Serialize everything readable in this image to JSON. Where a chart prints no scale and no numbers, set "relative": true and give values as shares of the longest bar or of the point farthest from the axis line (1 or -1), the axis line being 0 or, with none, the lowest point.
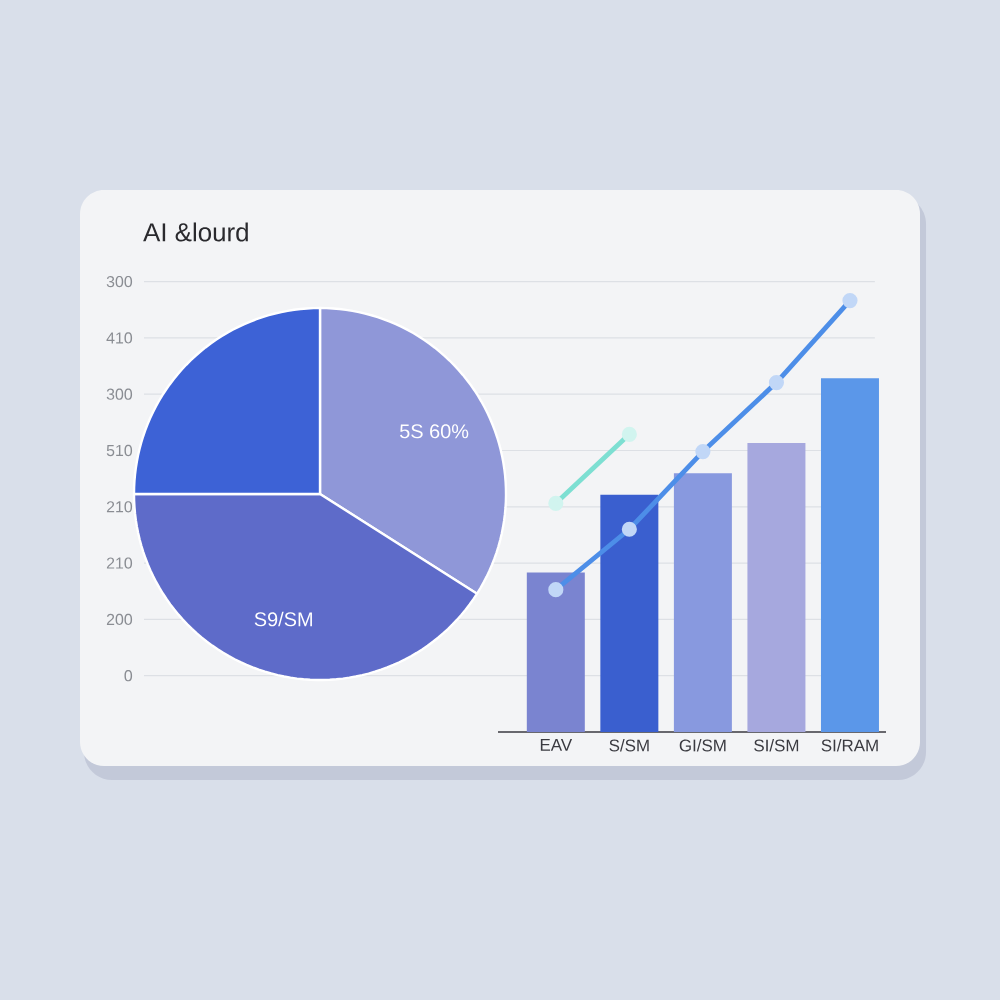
{
  "chart_data": [
    {
      "type": "pie",
      "title": "AI &lourd",
      "categories": [
        "5S 60%",
        "S9/SM",
        null
      ],
      "values": [
        34,
        41,
        25
      ],
      "colors": [
        "#8f97d8",
        "#5e6bc9",
        "#3d62d6"
      ]
    },
    {
      "type": "bar",
      "categories": [
        "EAV",
        "S/SM",
        "GI/SM",
        "SI/SM",
        "SI/RAM"
      ],
      "relative": true,
      "series": [
        {
          "values": [
            0.37,
            0.55,
            0.6,
            0.67,
            0.82
          ],
          "colors": [
            "#7a84d0",
            "#3a5fcf",
            "#8899df",
            "#a6a8de",
            "#5b97e9"
          ]
        },
        {
          "type": "line",
          "color": "#7ddfd2",
          "values": [
            0.53,
            0.69,
            null,
            null,
            null
          ]
        },
        {
          "type": "line",
          "color": "#4d8ee8",
          "values": [
            0.33,
            0.47,
            0.65,
            0.81,
            1.0
          ]
        }
      ],
      "annotations": [
        "300",
        "410",
        "300",
        "510",
        "210",
        "210",
        "200",
        "0"
      ],
      "grid": "y",
      "marker": "circle"
    }
  ]
}
